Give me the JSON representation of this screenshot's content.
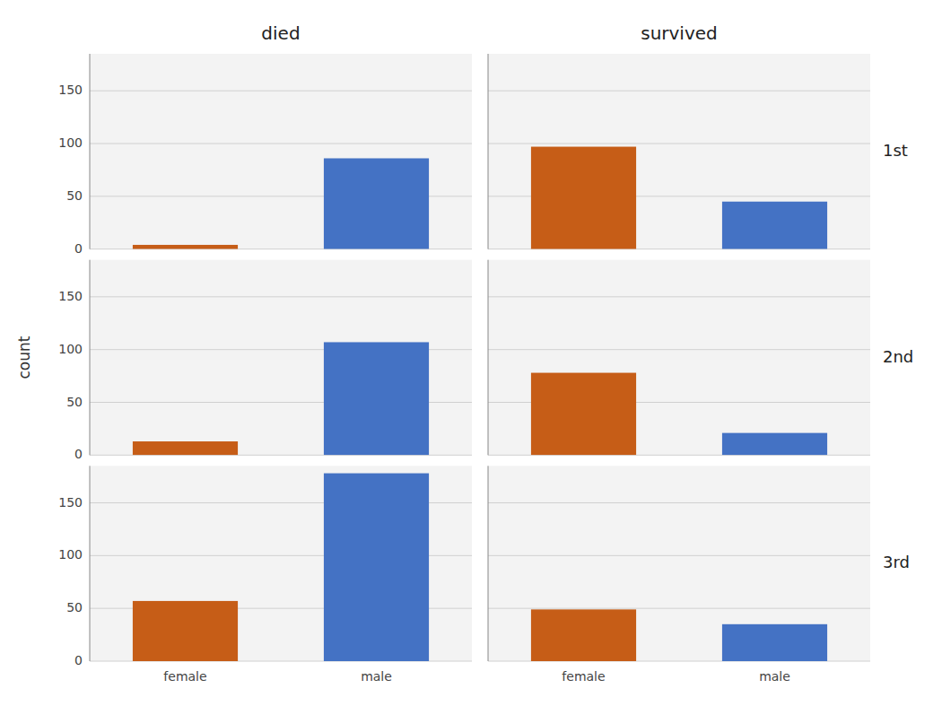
{
  "chart_data": {
    "type": "bar",
    "y_label": "count",
    "columns": [
      "died",
      "survived"
    ],
    "rows": [
      "1st",
      "2nd",
      "3rd"
    ],
    "categories": [
      "female",
      "male"
    ],
    "colors": [
      "#C65D17",
      "#4472C4"
    ],
    "values": [
      [
        [
          4,
          86
        ],
        [
          97,
          45
        ]
      ],
      [
        [
          13,
          107
        ],
        [
          78,
          21
        ]
      ],
      [
        [
          57,
          178
        ],
        [
          49,
          35
        ]
      ]
    ],
    "ylim": [
      0,
      185
    ],
    "yticks": [
      0,
      50,
      100,
      150
    ],
    "grid": true
  }
}
